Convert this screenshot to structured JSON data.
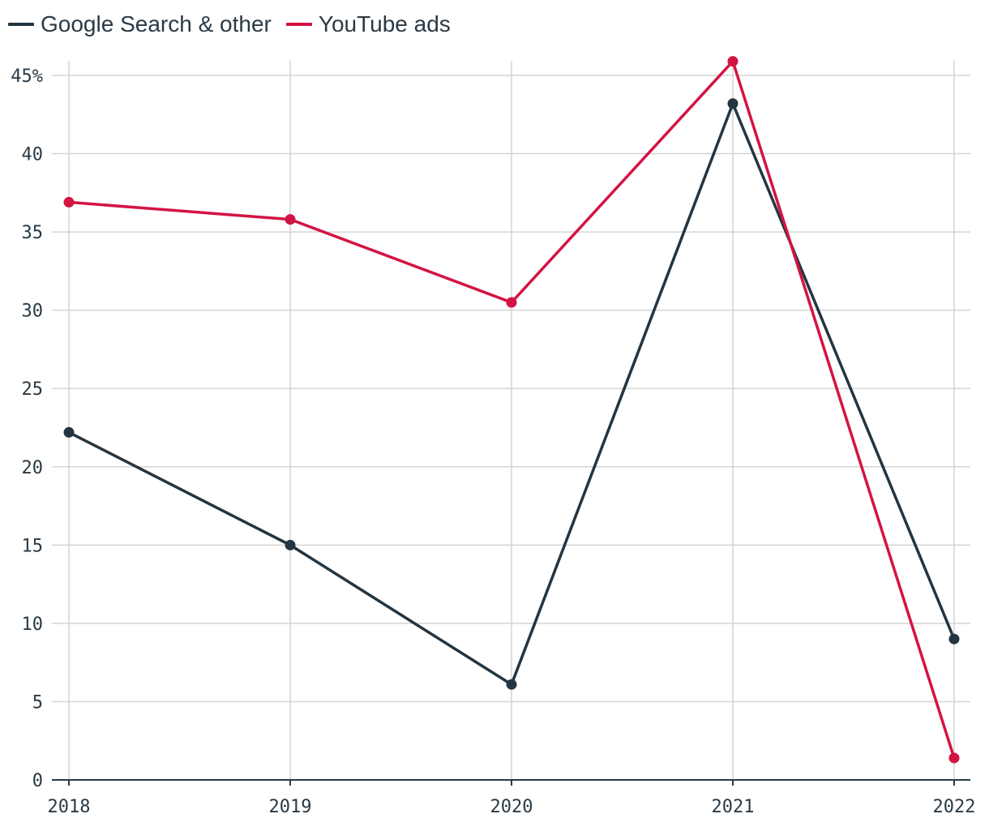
{
  "chart_data": {
    "type": "line",
    "x": [
      "2018",
      "2019",
      "2020",
      "2021",
      "2022"
    ],
    "series": [
      {
        "name": "Google Search & other",
        "color": "#233540",
        "values": [
          22.2,
          15.0,
          6.1,
          43.2,
          9.0
        ]
      },
      {
        "name": "YouTube ads",
        "color": "#d31443",
        "values": [
          36.9,
          35.8,
          30.5,
          45.9,
          1.4
        ]
      }
    ],
    "ylim": [
      0,
      45
    ],
    "yticks": [
      "0",
      "5",
      "10",
      "15",
      "20",
      "25",
      "30",
      "35",
      "40",
      "45%"
    ],
    "title": "",
    "xlabel": "",
    "ylabel": "",
    "grid": true,
    "legend_position": "top-left"
  }
}
